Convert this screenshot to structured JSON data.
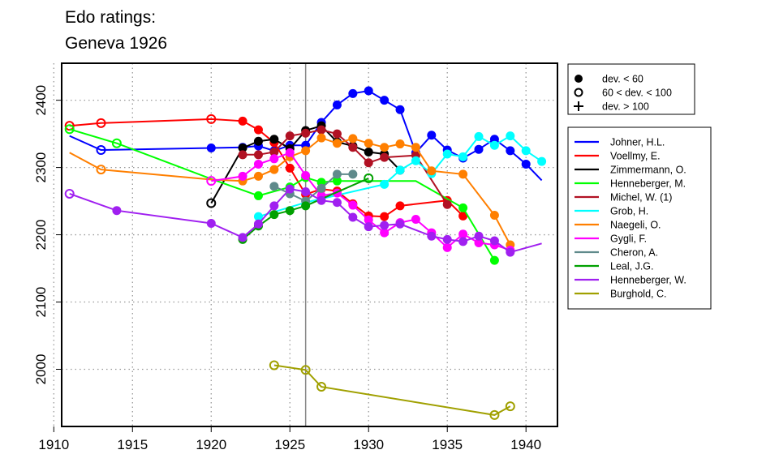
{
  "chart_data": {
    "type": "line",
    "title": [
      "Edo ratings:",
      "Geneva 1926"
    ],
    "xlabel": "",
    "ylabel": "",
    "xlim": [
      1910.5,
      1942.0
    ],
    "ylim": [
      1915,
      2455
    ],
    "x_ticks": [
      1910,
      1915,
      1920,
      1925,
      1930,
      1935,
      1940
    ],
    "y_ticks": [
      2000,
      2100,
      2200,
      2300,
      2400
    ],
    "grid": true,
    "marker_line_year": 1926,
    "marker_legend": [
      {
        "symbol": "filled-circle",
        "label": "dev. < 60"
      },
      {
        "symbol": "open-circle",
        "label": "60 < dev. < 100"
      },
      {
        "symbol": "plus",
        "label": "dev. > 100"
      }
    ],
    "series": [
      {
        "name": "Johner, H.L.",
        "color": "#0000ff",
        "x": [
          1911,
          1913,
          1920,
          1922,
          1923,
          1924,
          1925,
          1926,
          1927,
          1928,
          1929,
          1930,
          1931,
          1932,
          1933,
          1934,
          1935,
          1936,
          1937,
          1938,
          1939,
          1940,
          1941
        ],
        "y": [
          2347,
          2326,
          2329,
          2330,
          2332,
          2325,
          2333,
          2333,
          2367,
          2393,
          2410,
          2414,
          2400,
          2386,
          2322,
          2348,
          2326,
          2314,
          2327,
          2342,
          2325,
          2305,
          2281
        ],
        "markers": [
          "none",
          "open",
          "filled",
          "filled",
          "filled",
          "filled",
          "filled",
          "filled",
          "filled",
          "filled",
          "filled",
          "filled",
          "filled",
          "filled",
          "filled",
          "filled",
          "filled",
          "filled",
          "filled",
          "filled",
          "filled",
          "filled",
          "none"
        ]
      },
      {
        "name": "Voellmy, E.",
        "color": "#ff0000",
        "x": [
          1911,
          1913,
          1920,
          1922,
          1923,
          1924,
          1925,
          1926,
          1927,
          1928,
          1929,
          1930,
          1931,
          1932,
          1935,
          1936
        ],
        "y": [
          2362,
          2366,
          2372,
          2369,
          2356,
          2337,
          2299,
          2260,
          2268,
          2265,
          2246,
          2228,
          2227,
          2243,
          2251,
          2228
        ],
        "markers": [
          "open",
          "open",
          "open",
          "filled",
          "filled",
          "filled",
          "filled",
          "filled",
          "filled",
          "filled",
          "filled",
          "filled",
          "filled",
          "filled",
          "filled",
          "filled"
        ]
      },
      {
        "name": "Zimmermann, O.",
        "color": "#000000",
        "x": [
          1920,
          1922,
          1923,
          1924,
          1925,
          1926,
          1927,
          1928,
          1929,
          1930,
          1931,
          1932
        ],
        "y": [
          2247,
          2329,
          2339,
          2342,
          2328,
          2355,
          2362,
          2338,
          2332,
          2323,
          2320,
          2296
        ],
        "markers": [
          "open",
          "filled",
          "filled",
          "filled",
          "filled",
          "filled",
          "filled",
          "filled",
          "filled",
          "filled",
          "filled",
          "filled"
        ]
      },
      {
        "name": "Henneberger, M.",
        "color": "#00ff00",
        "x": [
          1911,
          1914,
          1920,
          1923,
          1925,
          1926,
          1927,
          1928,
          1933,
          1936,
          1938
        ],
        "y": [
          2357,
          2336,
          2283,
          2258,
          2271,
          2285,
          2278,
          2280,
          2280,
          2240,
          2162
        ],
        "markers": [
          "open",
          "open",
          "none",
          "filled",
          "filled",
          "filled",
          "filled",
          "filled",
          "none",
          "filled",
          "filled"
        ]
      },
      {
        "name": "Michel, W. (1)",
        "color": "#b11123",
        "x": [
          1922,
          1923,
          1924,
          1925,
          1926,
          1927,
          1928,
          1929,
          1930,
          1931,
          1933,
          1935
        ],
        "y": [
          2319,
          2319,
          2323,
          2347,
          2351,
          2356,
          2350,
          2330,
          2307,
          2315,
          2318,
          2245
        ],
        "markers": [
          "filled",
          "filled",
          "filled",
          "filled",
          "filled",
          "filled",
          "filled",
          "filled",
          "filled",
          "filled",
          "filled",
          "filled"
        ]
      },
      {
        "name": "Grob, H.",
        "color": "#00ffff",
        "x": [
          1923,
          1926,
          1931,
          1932,
          1933,
          1934,
          1935,
          1936,
          1937,
          1938,
          1939,
          1940,
          1941
        ],
        "y": [
          2227,
          2248,
          2275,
          2296,
          2310,
          2291,
          2320,
          2316,
          2346,
          2333,
          2347,
          2325,
          2309
        ],
        "markers": [
          "filled",
          "none",
          "filled",
          "filled",
          "filled",
          "filled",
          "filled",
          "filled",
          "filled",
          "filled",
          "filled",
          "filled",
          "filled"
        ]
      },
      {
        "name": "Naegeli, O.",
        "color": "#ff7f00",
        "x": [
          1911,
          1913,
          1920,
          1922,
          1923,
          1924,
          1925,
          1926,
          1927,
          1928,
          1929,
          1930,
          1931,
          1932,
          1933,
          1934,
          1936,
          1938,
          1939
        ],
        "y": [
          2322,
          2297,
          2282,
          2280,
          2287,
          2297,
          2316,
          2325,
          2344,
          2336,
          2343,
          2336,
          2330,
          2335,
          2330,
          2295,
          2290,
          2229,
          2185
        ],
        "markers": [
          "none",
          "open",
          "none",
          "filled",
          "filled",
          "filled",
          "filled",
          "filled",
          "filled",
          "filled",
          "filled",
          "filled",
          "filled",
          "filled",
          "filled",
          "filled",
          "filled",
          "filled",
          "filled"
        ]
      },
      {
        "name": "Gygli, F.",
        "color": "#ff00ff",
        "x": [
          1920,
          1922,
          1923,
          1924,
          1925,
          1926,
          1927,
          1928,
          1929,
          1930,
          1931,
          1932,
          1933,
          1934,
          1935,
          1936,
          1937,
          1938,
          1939
        ],
        "y": [
          2280,
          2287,
          2305,
          2313,
          2322,
          2288,
          2258,
          2262,
          2244,
          2222,
          2203,
          2218,
          2223,
          2203,
          2181,
          2201,
          2188,
          2185,
          2177
        ],
        "markers": [
          "open",
          "filled",
          "filled",
          "filled",
          "filled",
          "filled",
          "filled",
          "filled",
          "filled",
          "filled",
          "filled",
          "filled",
          "filled",
          "filled",
          "filled",
          "filled",
          "filled",
          "filled",
          "filled"
        ]
      },
      {
        "name": "Cheron, A.",
        "color": "#5f8a8b",
        "x": [
          1924,
          1925,
          1926,
          1927,
          1928,
          1929
        ],
        "y": [
          2272,
          2261,
          2250,
          2269,
          2290,
          2290
        ],
        "markers": [
          "filled",
          "filled",
          "filled",
          "filled",
          "filled",
          "filled"
        ]
      },
      {
        "name": "Leal, J.G.",
        "color": "#00a000",
        "x": [
          1922,
          1923,
          1924,
          1925,
          1926,
          1930
        ],
        "y": [
          2193,
          2213,
          2230,
          2236,
          2243,
          2284
        ],
        "markers": [
          "filled",
          "filled",
          "filled",
          "filled",
          "filled",
          "open"
        ]
      },
      {
        "name": "Henneberger, W.",
        "color": "#a020f0",
        "x": [
          1911,
          1914,
          1920,
          1922,
          1923,
          1924,
          1925,
          1926,
          1927,
          1928,
          1929,
          1930,
          1931,
          1932,
          1934,
          1935,
          1936,
          1937,
          1938,
          1939,
          1941
        ],
        "y": [
          2261,
          2236,
          2217,
          2196,
          2216,
          2243,
          2268,
          2264,
          2251,
          2248,
          2226,
          2212,
          2214,
          2216,
          2198,
          2193,
          2190,
          2198,
          2191,
          2174,
          2187
        ],
        "markers": [
          "open",
          "filled",
          "filled",
          "filled",
          "filled",
          "filled",
          "filled",
          "filled",
          "filled",
          "filled",
          "filled",
          "filled",
          "filled",
          "filled",
          "filled",
          "filled",
          "filled",
          "filled",
          "filled",
          "filled",
          "none"
        ]
      },
      {
        "name": "Burghold, C.",
        "color": "#a0a000",
        "x": [
          1924,
          1926,
          1927,
          1938,
          1939
        ],
        "y": [
          2006,
          1999,
          1974,
          1932,
          1945
        ],
        "markers": [
          "open",
          "open",
          "open",
          "open",
          "open"
        ]
      }
    ]
  }
}
